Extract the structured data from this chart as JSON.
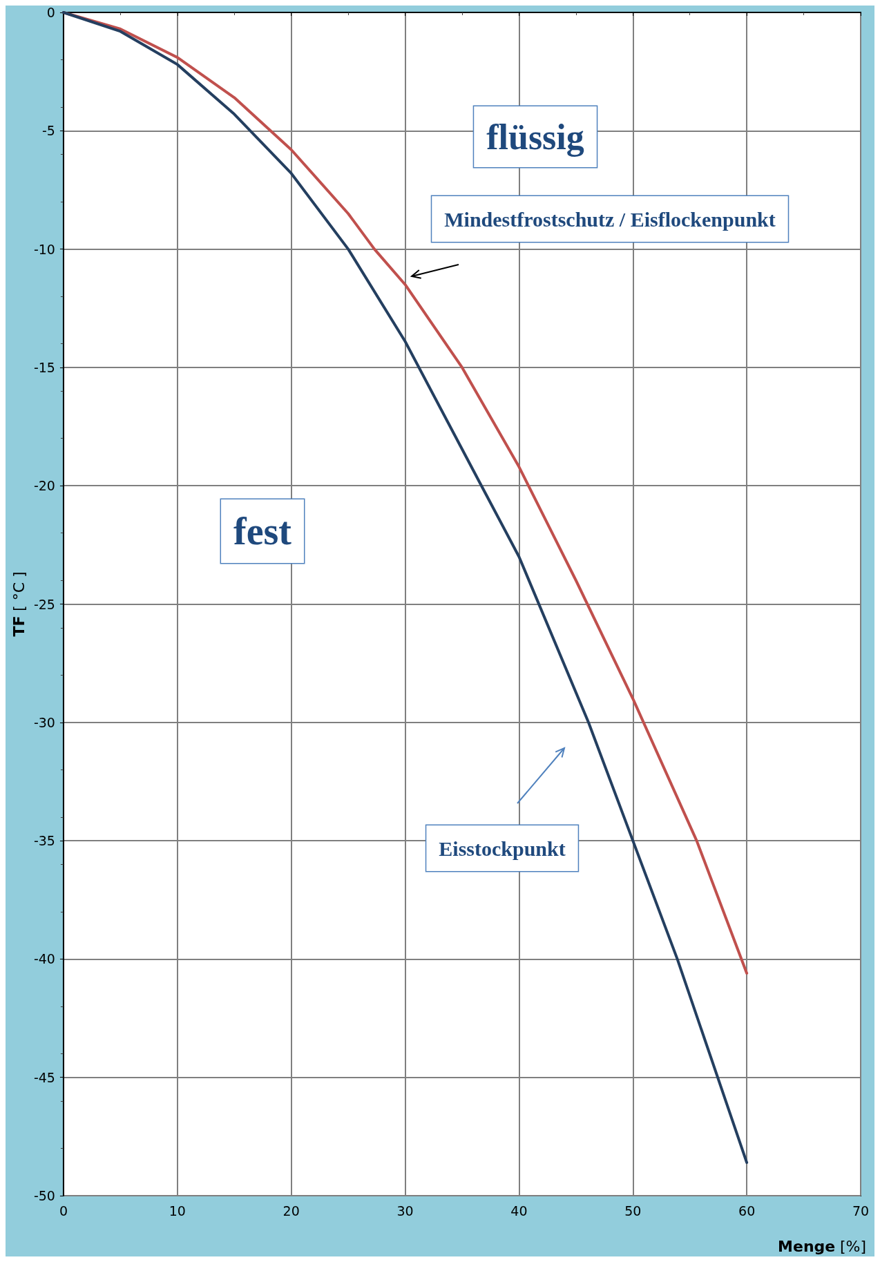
{
  "chart_data": {
    "type": "line",
    "xlabel": "Menge [%]",
    "ylabel": "TF [ °C ]",
    "xlim": [
      0,
      70
    ],
    "xticks": [
      0,
      10,
      20,
      30,
      40,
      50,
      60,
      70
    ],
    "ylim": [
      -50,
      0
    ],
    "yticks": [
      -50,
      -45,
      -40,
      -35,
      -30,
      -25,
      -20,
      -15,
      -10,
      -5,
      0
    ],
    "grid": true,
    "marker": "none",
    "line_style": "solid",
    "series": [
      {
        "color": "#c0504d",
        "x": [
          0,
          5,
          10,
          15,
          20,
          25,
          27.3,
          30,
          35,
          40,
          45,
          50,
          55.6,
          60
        ],
        "values": [
          0,
          -0.7,
          -1.9,
          -3.6,
          -5.8,
          -8.5,
          -10,
          -11.5,
          -15,
          -19.2,
          -24,
          -29,
          -35,
          -40.6
        ]
      },
      {
        "color": "#243f60",
        "x": [
          0,
          5,
          10,
          15,
          20,
          25,
          30,
          36.7,
          40,
          46.1,
          50,
          53.9,
          60
        ],
        "values": [
          0,
          -0.8,
          -2.2,
          -4.3,
          -6.8,
          -10,
          -13.9,
          -20,
          -23,
          -30,
          -35,
          -40,
          -48.6
        ]
      }
    ],
    "annotations": [
      "flüssig",
      "Mindestfrostschutz / Eisflockenpunkt",
      "fest",
      "Eisstockpunkt"
    ]
  }
}
